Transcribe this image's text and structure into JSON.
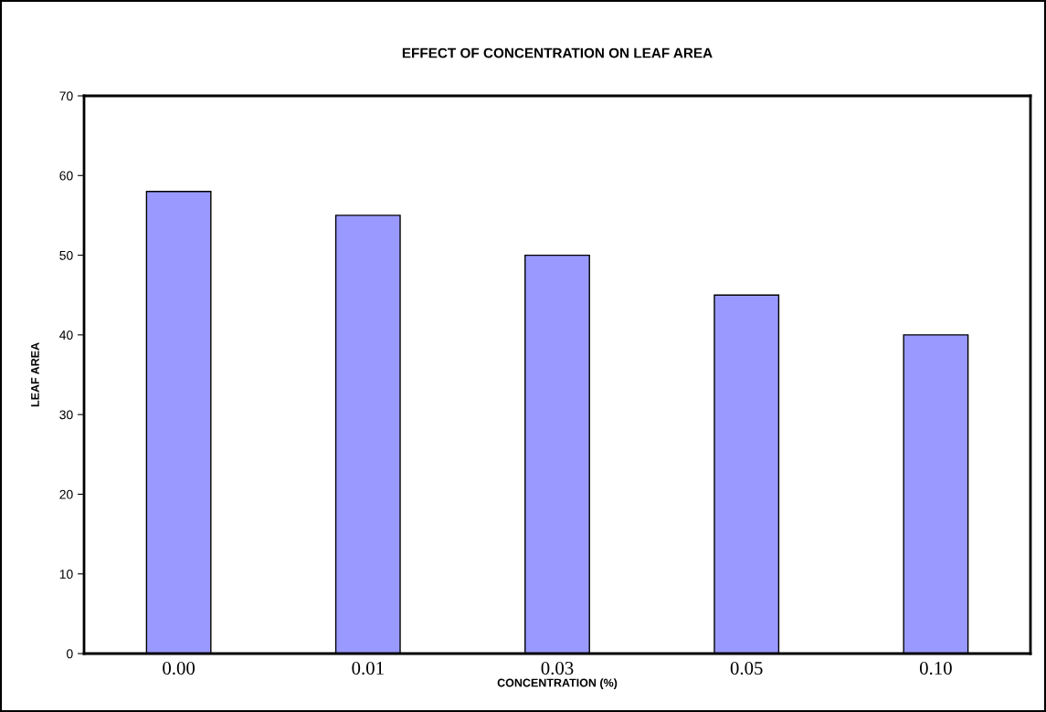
{
  "chart_data": {
    "type": "bar",
    "title": "EFFECT OF CONCENTRATION ON LEAF AREA",
    "xlabel": "CONCENTRATION (%)",
    "ylabel": "LEAF AREA",
    "categories": [
      "0.00",
      "0.01",
      "0.03",
      "0.05",
      "0.10"
    ],
    "values": [
      58,
      55,
      50,
      45,
      40
    ],
    "color": "#9999ff",
    "ylim": [
      0,
      70
    ],
    "yticks": [
      0,
      10,
      20,
      30,
      40,
      50,
      60,
      70
    ],
    "grid": false,
    "legend": false
  }
}
